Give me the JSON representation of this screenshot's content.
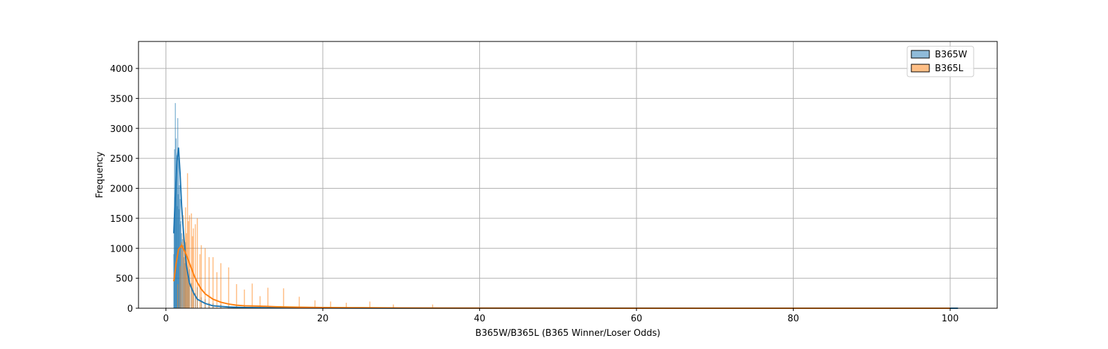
{
  "chart_data": {
    "type": "histogram",
    "title": "",
    "xlabel": "B365W/B365L (B365 Winner/Loser Odds)",
    "ylabel": "Frequency",
    "xlim": [
      -3.5,
      106
    ],
    "ylim": [
      0,
      4450
    ],
    "x_ticks": [
      0,
      20,
      40,
      60,
      80,
      100
    ],
    "y_ticks": [
      0,
      500,
      1000,
      1500,
      2000,
      2500,
      3000,
      3500,
      4000
    ],
    "grid": true,
    "legend_position": "top-right",
    "series": [
      {
        "name": "B365W",
        "color": "#1f77b4",
        "bars": [
          [
            1.01,
            900
          ],
          [
            1.05,
            1500
          ],
          [
            1.1,
            2650
          ],
          [
            1.14,
            1850
          ],
          [
            1.2,
            3420
          ],
          [
            1.25,
            2100
          ],
          [
            1.3,
            2830
          ],
          [
            1.36,
            2400
          ],
          [
            1.4,
            2550
          ],
          [
            1.44,
            1700
          ],
          [
            1.5,
            3170
          ],
          [
            1.57,
            1900
          ],
          [
            1.61,
            2500
          ],
          [
            1.66,
            1650
          ],
          [
            1.72,
            2050
          ],
          [
            1.8,
            1820
          ],
          [
            1.83,
            1400
          ],
          [
            1.9,
            1450
          ],
          [
            2.0,
            1250
          ],
          [
            2.1,
            1150
          ],
          [
            2.2,
            1050
          ],
          [
            2.3,
            850
          ],
          [
            2.4,
            750
          ],
          [
            2.5,
            1100
          ],
          [
            2.62,
            700
          ],
          [
            2.75,
            600
          ],
          [
            2.87,
            500
          ],
          [
            3.0,
            650
          ],
          [
            3.25,
            420
          ],
          [
            3.5,
            300
          ],
          [
            3.75,
            250
          ],
          [
            4.0,
            350
          ],
          [
            4.5,
            180
          ],
          [
            5.0,
            150
          ],
          [
            5.5,
            90
          ],
          [
            6.0,
            80
          ],
          [
            7.0,
            60
          ],
          [
            8.0,
            40
          ],
          [
            9.0,
            30
          ],
          [
            10.0,
            25
          ],
          [
            11.0,
            15
          ],
          [
            13.0,
            12
          ],
          [
            15.0,
            10
          ],
          [
            17.0,
            6
          ],
          [
            21.0,
            5
          ],
          [
            26.0,
            4
          ],
          [
            29.0,
            18
          ]
        ],
        "kde": [
          [
            1.0,
            1250
          ],
          [
            1.2,
            1900
          ],
          [
            1.4,
            2450
          ],
          [
            1.6,
            2680
          ],
          [
            1.8,
            2250
          ],
          [
            2.0,
            1700
          ],
          [
            2.3,
            1150
          ],
          [
            2.6,
            720
          ],
          [
            3.0,
            420
          ],
          [
            3.5,
            260
          ],
          [
            4.0,
            150
          ],
          [
            5.0,
            80
          ],
          [
            6.0,
            40
          ],
          [
            8.0,
            20
          ],
          [
            10.0,
            12
          ],
          [
            15.0,
            6
          ],
          [
            20.0,
            4
          ],
          [
            30.0,
            2
          ],
          [
            50.0,
            1
          ],
          [
            80.0,
            0
          ],
          [
            101.0,
            0
          ]
        ]
      },
      {
        "name": "B365L",
        "color": "#ff7f0e",
        "bars": [
          [
            1.5,
            400
          ],
          [
            1.8,
            700
          ],
          [
            2.0,
            1100
          ],
          [
            2.2,
            1550
          ],
          [
            2.37,
            1050
          ],
          [
            2.5,
            1680
          ],
          [
            2.62,
            1250
          ],
          [
            2.75,
            2250
          ],
          [
            2.87,
            1450
          ],
          [
            3.0,
            1550
          ],
          [
            3.25,
            1580
          ],
          [
            3.4,
            1200
          ],
          [
            3.5,
            1330
          ],
          [
            3.75,
            1400
          ],
          [
            4.0,
            1500
          ],
          [
            4.33,
            900
          ],
          [
            4.5,
            1050
          ],
          [
            5.0,
            1000
          ],
          [
            5.5,
            850
          ],
          [
            6.0,
            850
          ],
          [
            6.5,
            600
          ],
          [
            7.0,
            750
          ],
          [
            8.0,
            680
          ],
          [
            9.0,
            400
          ],
          [
            10.0,
            310
          ],
          [
            11.0,
            410
          ],
          [
            12.0,
            200
          ],
          [
            13.0,
            340
          ],
          [
            15.0,
            330
          ],
          [
            17.0,
            190
          ],
          [
            19.0,
            130
          ],
          [
            21.0,
            110
          ],
          [
            23.0,
            90
          ],
          [
            26.0,
            110
          ],
          [
            29.0,
            60
          ],
          [
            34.0,
            60
          ]
        ],
        "kde": [
          [
            1.0,
            450
          ],
          [
            1.3,
            750
          ],
          [
            1.6,
            980
          ],
          [
            2.0,
            1050
          ],
          [
            2.4,
            950
          ],
          [
            2.8,
            820
          ],
          [
            3.2,
            680
          ],
          [
            3.6,
            540
          ],
          [
            4.0,
            430
          ],
          [
            4.5,
            320
          ],
          [
            5.0,
            240
          ],
          [
            6.0,
            150
          ],
          [
            7.0,
            100
          ],
          [
            8.0,
            70
          ],
          [
            9.0,
            50
          ],
          [
            10.0,
            40
          ],
          [
            12.0,
            35
          ],
          [
            13.0,
            30
          ],
          [
            14.0,
            25
          ],
          [
            15.0,
            22
          ],
          [
            17.0,
            18
          ],
          [
            20.0,
            12
          ],
          [
            25.0,
            8
          ],
          [
            30.0,
            5
          ],
          [
            35.0,
            3
          ],
          [
            45.0,
            1
          ],
          [
            60.0,
            0
          ],
          [
            80.0,
            0
          ],
          [
            100.0,
            0
          ]
        ]
      }
    ]
  }
}
